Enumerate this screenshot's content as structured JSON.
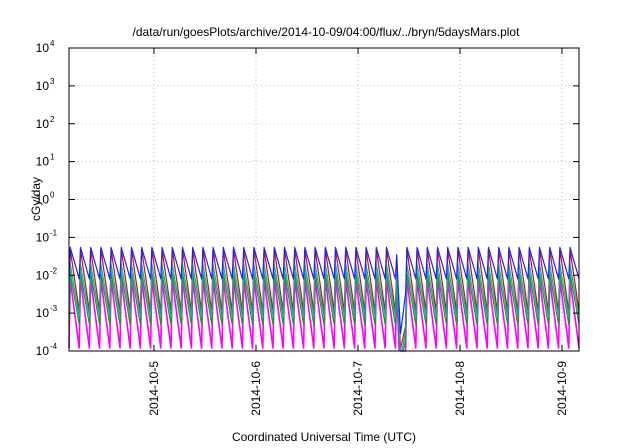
{
  "chart_data": {
    "type": "line",
    "title": "/data/run/goesPlots/archive/2014-10-09/04:00/flux/../bryn/5daysMars.plot",
    "xlabel": "Coordinated Universal Time (UTC)",
    "ylabel": "cGy/day",
    "y_scale": "log",
    "ylim": [
      0.0001,
      10000
    ],
    "xlim": [
      "2014-10-04 04:00",
      "2014-10-09 04:00"
    ],
    "grid": true,
    "x_ticks": [
      {
        "value": "2014-10-05 00:00",
        "label": "2014-10-5"
      },
      {
        "value": "2014-10-06 00:00",
        "label": "2014-10-6"
      },
      {
        "value": "2014-10-07 00:00",
        "label": "2014-10-7"
      },
      {
        "value": "2014-10-08 00:00",
        "label": "2014-10-8"
      },
      {
        "value": "2014-10-09 00:00",
        "label": "2014-10-9"
      }
    ],
    "y_ticks": [
      {
        "value": 0.0001,
        "base": "10",
        "exp": "-4"
      },
      {
        "value": 0.001,
        "base": "10",
        "exp": "-3"
      },
      {
        "value": 0.01,
        "base": "10",
        "exp": "-2"
      },
      {
        "value": 0.1,
        "base": "10",
        "exp": "-1"
      },
      {
        "value": 1,
        "base": "10",
        "exp": "0"
      },
      {
        "value": 10,
        "base": "10",
        "exp": "1"
      },
      {
        "value": 100,
        "base": "10",
        "exp": "2"
      },
      {
        "value": 1000,
        "base": "10",
        "exp": "3"
      },
      {
        "value": 10000,
        "base": "10",
        "exp": "4"
      }
    ],
    "sawtooth_period_hours": 2.4,
    "dip": {
      "start": "2014-10-07 09:00",
      "min": "2014-10-07 10:00",
      "end": "2014-10-07 11:30",
      "min_factor": 0.012
    },
    "series": [
      {
        "color": "#ff00ff",
        "peak": 0.008,
        "trough": 0.00012
      },
      {
        "color": "#cc1010",
        "peak": 0.05,
        "trough": 0.0011
      },
      {
        "color": "#00b000",
        "peak": 0.012,
        "trough": 0.0005
      },
      {
        "color": "#18a8a8",
        "peak": 0.02,
        "trough": 0.0008
      },
      {
        "color": "#2020ff",
        "peak": 0.055,
        "trough": 0.008
      }
    ]
  }
}
